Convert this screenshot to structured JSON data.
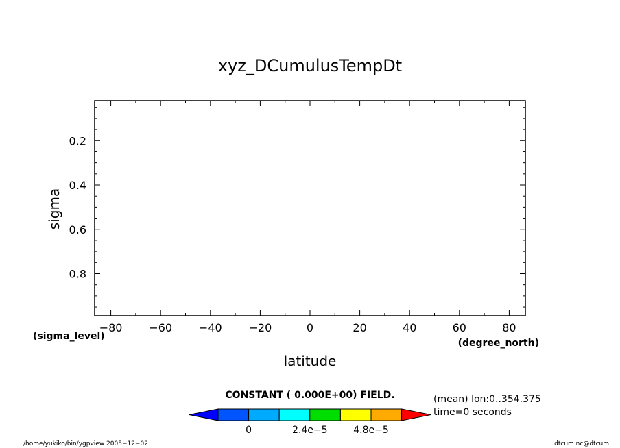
{
  "chart_data": {
    "type": "heatmap",
    "title": "xyz_DCumulusTempDt",
    "xlabel": "latitude",
    "ylabel": "sigma",
    "x_units": "(degree_north)",
    "y_units": "(sigma_level)",
    "xlim": [
      -86.5,
      86.5
    ],
    "ylim": [
      0.02,
      0.99
    ],
    "y_inverted": true,
    "x_ticks": [
      -80,
      -60,
      -40,
      -20,
      0,
      20,
      40,
      60,
      80
    ],
    "x_tick_labels": [
      "−80",
      "−60",
      "−40",
      "−20",
      "0",
      "20",
      "40",
      "60",
      "80"
    ],
    "y_ticks": [
      0.2,
      0.4,
      0.6,
      0.8
    ],
    "y_tick_labels": [
      "0.2",
      "0.4",
      "0.6",
      "0.8"
    ],
    "field_note": "CONSTANT ( 0.000E+00) FIELD.",
    "colorbar": {
      "colors": [
        "#0000ff",
        "#0055ff",
        "#00aaff",
        "#00ffff",
        "#00dd00",
        "#ffff00",
        "#ffaa00",
        "#ff0000"
      ],
      "tick_labels": [
        "0",
        "2.4e−5",
        "4.8e−5"
      ]
    },
    "info_lines": [
      "(mean) lon:0..354.375",
      "time=0 seconds"
    ],
    "footer_left": "/home/yukiko/bin/ygpview  2005−12−02",
    "footer_right": "dtcum.nc@dtcum"
  }
}
